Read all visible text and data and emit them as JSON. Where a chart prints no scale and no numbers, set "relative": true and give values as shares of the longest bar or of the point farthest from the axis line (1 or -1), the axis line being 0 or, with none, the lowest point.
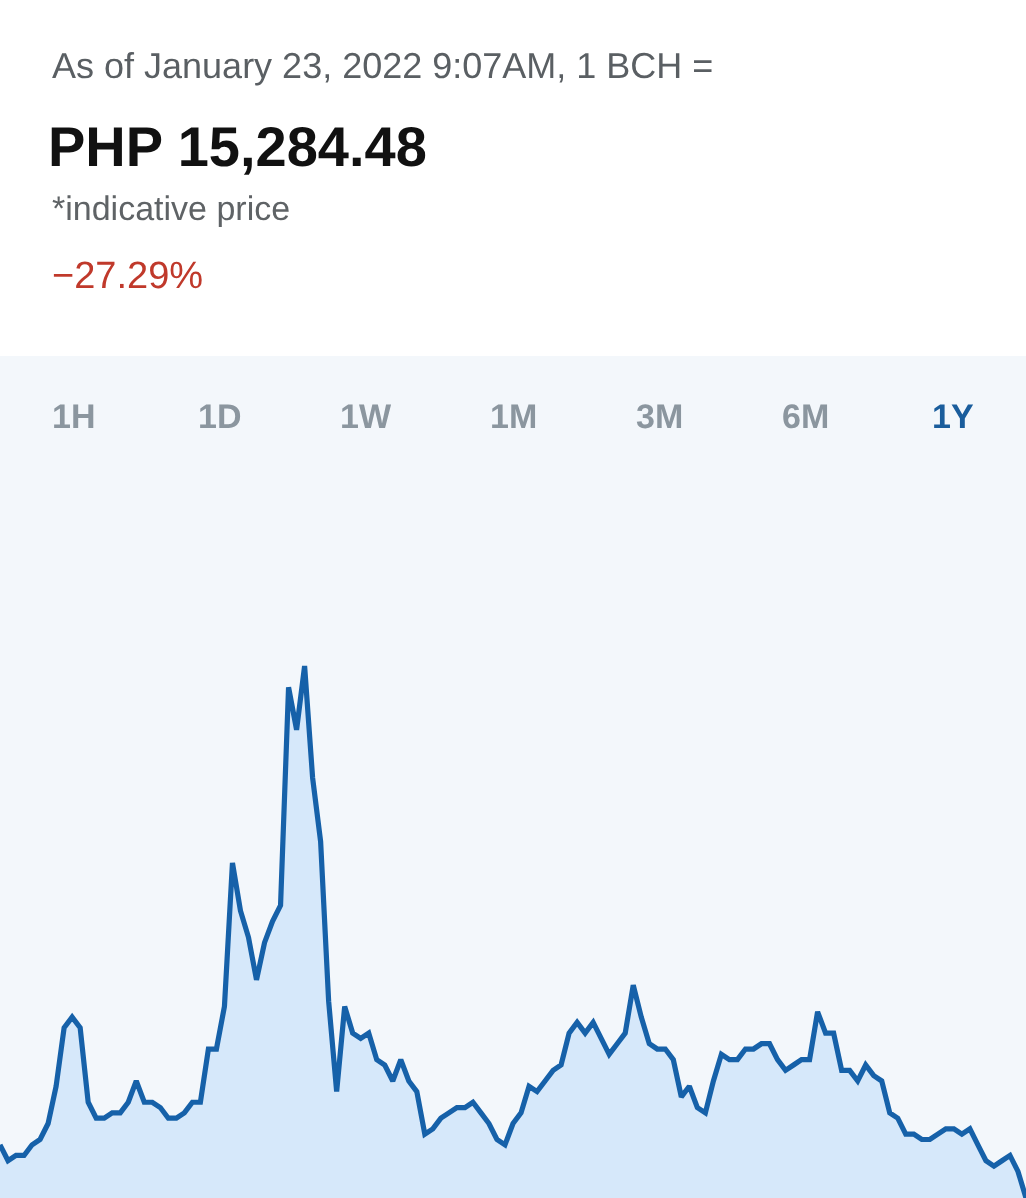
{
  "chart_data": {
    "type": "area",
    "title": "PHP 15,284.48",
    "subtitle": "As of January 23, 2022 9:07AM, 1 BCH =",
    "annotations": [
      "*indicative price",
      "−27.29%",
      "1H",
      "1D",
      "1W",
      "1M",
      "3M",
      "6M",
      "1Y"
    ],
    "relative": true,
    "color": "#1661a9",
    "categories": [
      null,
      null,
      null,
      null,
      null,
      null,
      null,
      null,
      null,
      null,
      null,
      null,
      null,
      null,
      null,
      null,
      null,
      null,
      null,
      null,
      null,
      null,
      null,
      null,
      null,
      null,
      null,
      null,
      null,
      null,
      null,
      null,
      null,
      null,
      null,
      null,
      null,
      null,
      null,
      null,
      null,
      null,
      null,
      null,
      null,
      null,
      null,
      null,
      null,
      null,
      null,
      null,
      null,
      null,
      null,
      null,
      null,
      null,
      null,
      null,
      null,
      null,
      null,
      null,
      null,
      null,
      null,
      null,
      null,
      null,
      null,
      null,
      null,
      null,
      null,
      null,
      null,
      null,
      null,
      null,
      null,
      null,
      null,
      null,
      null,
      null,
      null,
      null,
      null,
      null,
      null,
      null,
      null,
      null,
      null,
      null,
      null,
      null,
      null,
      null,
      null,
      null,
      null,
      null,
      null,
      null,
      null,
      null,
      null,
      null,
      null,
      null,
      null,
      null,
      null,
      null,
      null,
      null,
      null,
      null,
      null,
      null,
      null,
      null,
      null,
      null,
      null,
      null,
      null
    ],
    "values": [
      0.1,
      0.07,
      0.08,
      0.08,
      0.1,
      0.11,
      0.14,
      0.21,
      0.32,
      0.34,
      0.32,
      0.18,
      0.15,
      0.15,
      0.16,
      0.16,
      0.18,
      0.22,
      0.18,
      0.18,
      0.17,
      0.15,
      0.15,
      0.16,
      0.18,
      0.18,
      0.28,
      0.28,
      0.36,
      0.63,
      0.54,
      0.49,
      0.41,
      0.48,
      0.52,
      0.55,
      0.96,
      0.88,
      1.0,
      0.79,
      0.67,
      0.37,
      0.2,
      0.36,
      0.31,
      0.3,
      0.31,
      0.26,
      0.25,
      0.22,
      0.26,
      0.22,
      0.2,
      0.12,
      0.13,
      0.15,
      0.16,
      0.17,
      0.17,
      0.18,
      0.16,
      0.14,
      0.11,
      0.1,
      0.14,
      0.16,
      0.21,
      0.2,
      0.22,
      0.24,
      0.25,
      0.31,
      0.33,
      0.31,
      0.33,
      0.3,
      0.27,
      0.29,
      0.31,
      0.4,
      0.34,
      0.29,
      0.28,
      0.28,
      0.26,
      0.19,
      0.21,
      0.17,
      0.16,
      0.22,
      0.27,
      0.26,
      0.26,
      0.28,
      0.28,
      0.29,
      0.29,
      0.26,
      0.24,
      0.25,
      0.26,
      0.26,
      0.35,
      0.31,
      0.31,
      0.24,
      0.24,
      0.22,
      0.25,
      0.23,
      0.22,
      0.16,
      0.15,
      0.12,
      0.12,
      0.11,
      0.11,
      0.12,
      0.13,
      0.13,
      0.12,
      0.13,
      0.1,
      0.07,
      0.06,
      0.07,
      0.08,
      0.05,
      0
    ]
  }
}
